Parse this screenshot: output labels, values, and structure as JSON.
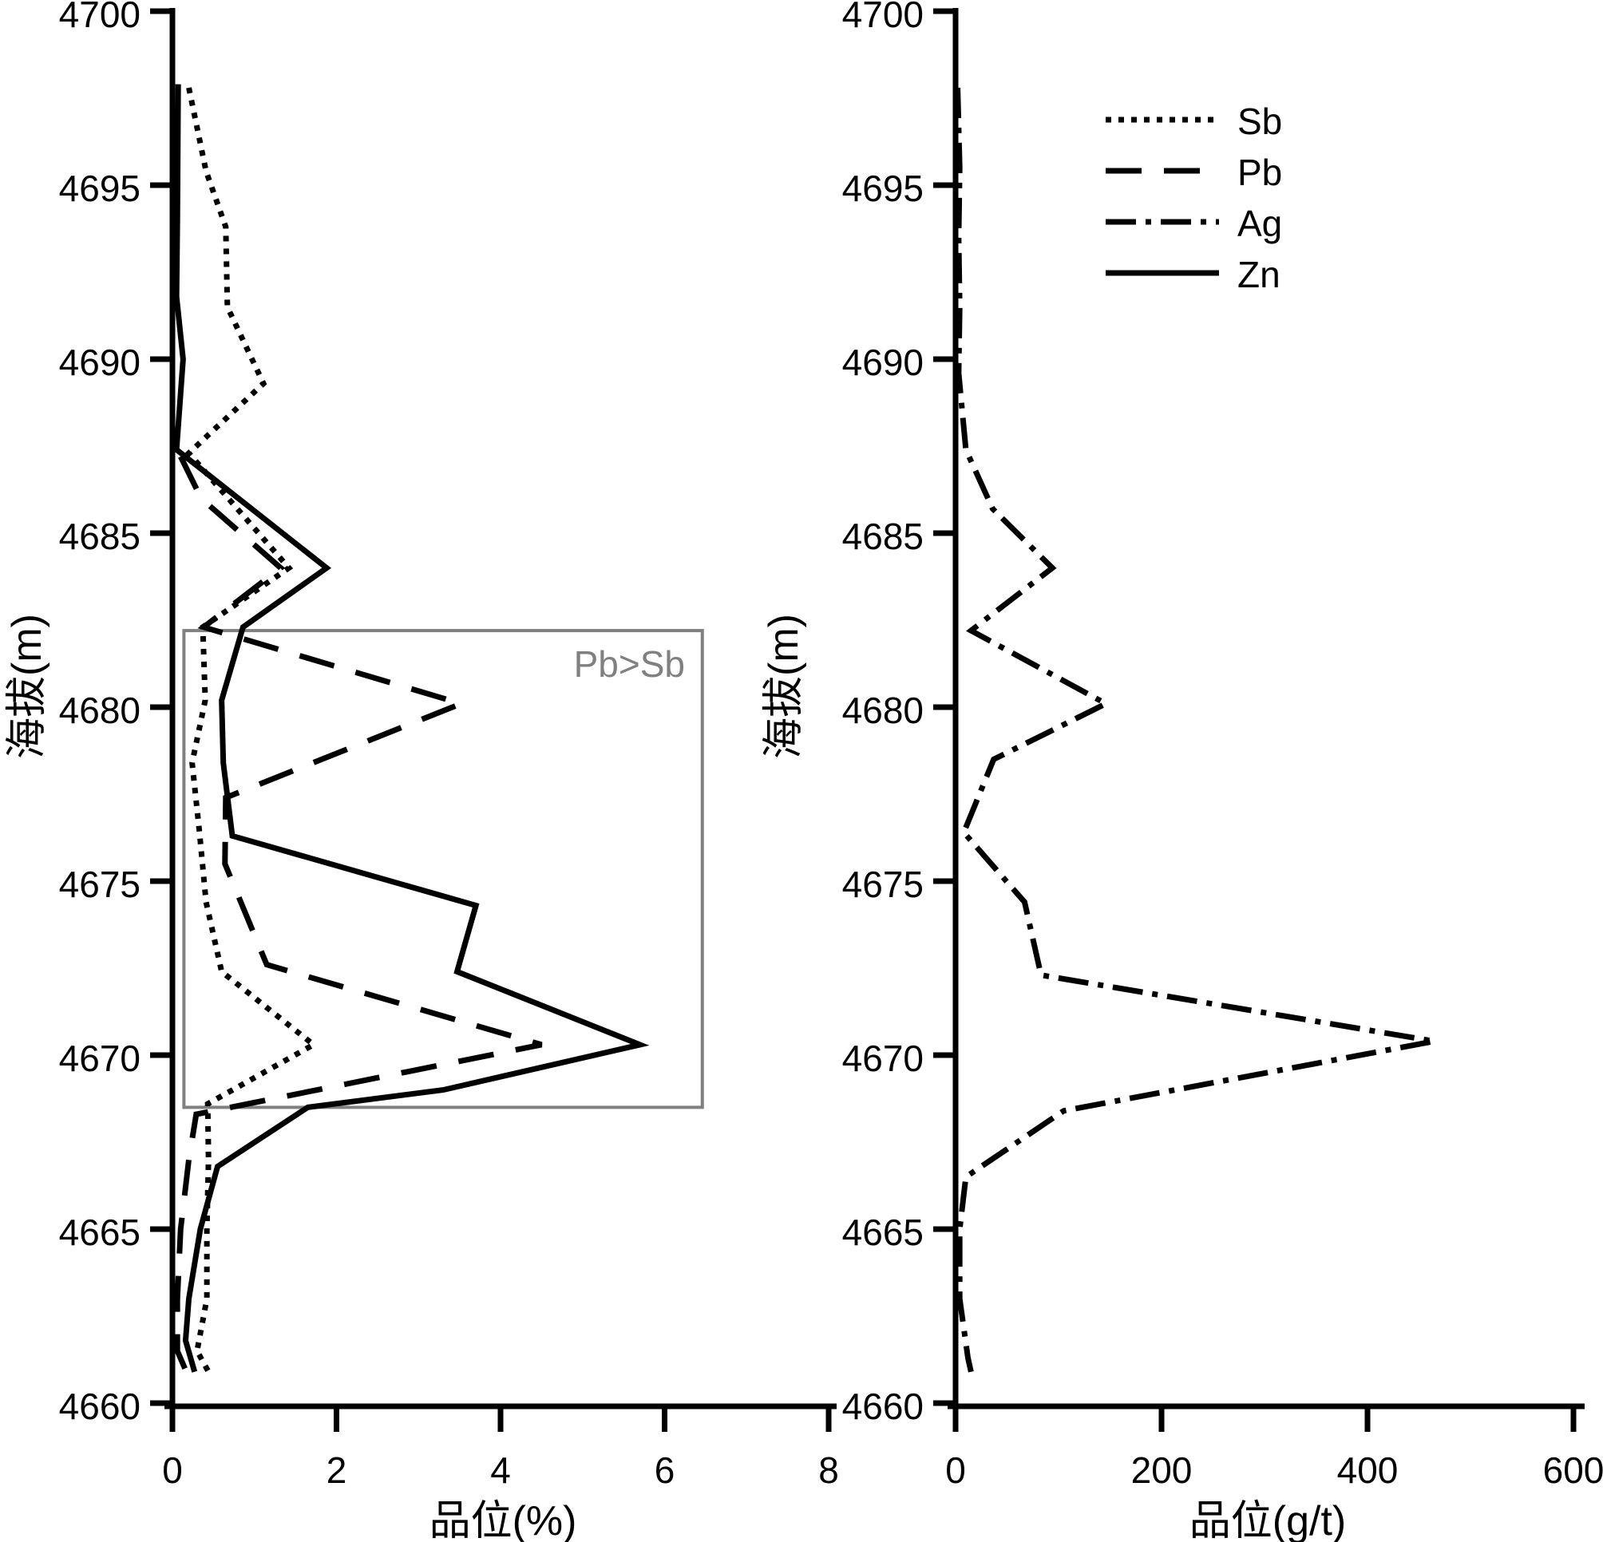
{
  "figure": {
    "background": "#ffffff",
    "line_color": "#000000",
    "annotation_color": "#808080"
  },
  "legend": {
    "position": "top of right panel",
    "entries": [
      {
        "label": "Sb",
        "style": "dotted"
      },
      {
        "label": "Pb",
        "style": "dashed"
      },
      {
        "label": "Ag",
        "style": "dashdot"
      },
      {
        "label": "Zn",
        "style": "solid"
      }
    ]
  },
  "chart_data": [
    {
      "type": "line",
      "panel": "left",
      "title": "",
      "xlabel": "品位(%)",
      "ylabel": "海拔(m)",
      "xlim": [
        0,
        8.1
      ],
      "ylim": [
        4660,
        4700
      ],
      "x_ticks": [
        0,
        2,
        4,
        6,
        8
      ],
      "y_ticks": [
        4700,
        4695,
        4690,
        4685,
        4680,
        4675,
        4670,
        4665,
        4660
      ],
      "grid": false,
      "orientation": "vertical profile: y axis = elevation (m), x axis = grade (%)",
      "series": [
        {
          "name": "Sb",
          "style": "dotted",
          "points_value_elev": [
            [
              0.2,
              4697.8
            ],
            [
              0.41,
              4695.4
            ],
            [
              0.65,
              4693.8
            ],
            [
              0.67,
              4691.5
            ],
            [
              1.11,
              4689.3
            ],
            [
              0.2,
              4687.3
            ],
            [
              1.42,
              4684.0
            ],
            [
              0.37,
              4682.3
            ],
            [
              0.4,
              4680.2
            ],
            [
              0.24,
              4678.4
            ],
            [
              0.33,
              4676.4
            ],
            [
              0.41,
              4674.4
            ],
            [
              0.6,
              4672.4
            ],
            [
              1.72,
              4670.3
            ],
            [
              0.43,
              4668.6
            ],
            [
              0.44,
              4667.0
            ],
            [
              0.42,
              4665.0
            ],
            [
              0.42,
              4663.0
            ],
            [
              0.3,
              4661.5
            ],
            [
              0.44,
              4660.9
            ]
          ]
        },
        {
          "name": "Pb",
          "style": "dashed",
          "points_value_elev": [
            [
              0.1,
              4687.2
            ],
            [
              0.35,
              4686.0
            ],
            [
              1.32,
              4684.0
            ],
            [
              0.38,
              4682.3
            ],
            [
              3.52,
              4680.1
            ],
            [
              0.65,
              4677.4
            ],
            [
              0.64,
              4675.5
            ],
            [
              1.15,
              4672.6
            ],
            [
              4.5,
              4670.3
            ],
            [
              0.29,
              4668.3
            ],
            [
              0.2,
              4667.0
            ],
            [
              0.1,
              4665.0
            ],
            [
              0.06,
              4663.0
            ],
            [
              0.06,
              4661.5
            ],
            [
              0.17,
              4660.9
            ]
          ]
        },
        {
          "name": "Zn",
          "style": "solid",
          "points_value_elev": [
            [
              0.07,
              4697.9
            ],
            [
              0.06,
              4694.0
            ],
            [
              0.05,
              4691.8
            ],
            [
              0.13,
              4690.0
            ],
            [
              0.05,
              4687.4
            ],
            [
              1.88,
              4684.0
            ],
            [
              0.86,
              4682.3
            ],
            [
              0.6,
              4680.2
            ],
            [
              0.62,
              4678.4
            ],
            [
              0.73,
              4676.3
            ],
            [
              3.7,
              4674.3
            ],
            [
              3.47,
              4672.4
            ],
            [
              5.7,
              4670.3
            ],
            [
              3.3,
              4669.0
            ],
            [
              1.65,
              4668.5
            ],
            [
              0.55,
              4666.8
            ],
            [
              0.34,
              4665.0
            ],
            [
              0.2,
              4663.0
            ],
            [
              0.16,
              4661.8
            ],
            [
              0.27,
              4660.9
            ]
          ]
        }
      ],
      "annotation_box": {
        "label": "Pb>Sb",
        "value_range": [
          0.14,
          6.46
        ],
        "elev_range": [
          4668.5,
          4682.2
        ],
        "color": "#808080"
      }
    },
    {
      "type": "line",
      "panel": "right",
      "title": "",
      "xlabel": "品位(g/t)",
      "ylabel": "海拔(m)",
      "xlim": [
        0,
        620
      ],
      "ylim": [
        4660,
        4700
      ],
      "x_ticks": [
        0,
        200,
        400,
        600
      ],
      "y_ticks": [
        4700,
        4695,
        4690,
        4685,
        4680,
        4675,
        4670,
        4665,
        4660
      ],
      "grid": false,
      "orientation": "vertical profile: y axis = elevation (m), x axis = grade (g/t)",
      "series": [
        {
          "name": "Ag",
          "style": "dashdot",
          "points_value_elev": [
            [
              2,
              4697.8
            ],
            [
              4,
              4695.5
            ],
            [
              3,
              4693.5
            ],
            [
              4,
              4691.5
            ],
            [
              3,
              4689.6
            ],
            [
              10,
              4687.4
            ],
            [
              36,
              4685.7
            ],
            [
              94,
              4684.0
            ],
            [
              15,
              4682.2
            ],
            [
              146,
              4680.1
            ],
            [
              37,
              4678.5
            ],
            [
              8,
              4676.4
            ],
            [
              67,
              4674.4
            ],
            [
              83,
              4672.3
            ],
            [
              465,
              4670.4
            ],
            [
              105,
              4668.4
            ],
            [
              10,
              4666.5
            ],
            [
              4,
              4665.0
            ],
            [
              4,
              4663.0
            ],
            [
              12,
              4661.3
            ],
            [
              15,
              4660.9
            ]
          ]
        }
      ]
    }
  ]
}
